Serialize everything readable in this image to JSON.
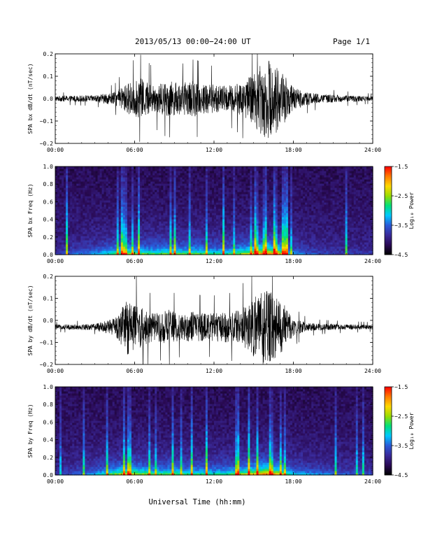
{
  "header": {
    "title": "2013/05/13  00:00−24:00 UT",
    "page": "Page 1/1"
  },
  "xaxis": {
    "label": "Universal Time (hh:mm)",
    "range_hours": [
      0,
      24
    ],
    "ticks": [
      {
        "hour": 0,
        "label": "00:00"
      },
      {
        "hour": 6,
        "label": "06:00"
      },
      {
        "hour": 12,
        "label": "12:00"
      },
      {
        "hour": 18,
        "label": "18:00"
      },
      {
        "hour": 24,
        "label": "24:00"
      }
    ]
  },
  "colorscale": [
    "#000000",
    "#2a0a55",
    "#3a2a9a",
    "#2a5ad8",
    "#00c8ff",
    "#00e07a",
    "#9adc00",
    "#ffd800",
    "#ff7a00",
    "#ff0000"
  ],
  "chart_data": [
    {
      "type": "line",
      "ylabel": "SPA bx dB/dt (nT/sec)",
      "ylim": [
        -0.2,
        0.2
      ],
      "yticks": [
        {
          "value": 0.2,
          "label": "0.2"
        },
        {
          "value": 0.1,
          "label": "0.1"
        },
        {
          "value": 0.0,
          "label": "0.0"
        },
        {
          "value": -0.1,
          "label": "−0.1"
        },
        {
          "value": -0.2,
          "label": "−0.2"
        }
      ],
      "baseline": 0.0,
      "x_hours": [
        0,
        3,
        4.5,
        5.5,
        6.5,
        7.5,
        8.5,
        9.5,
        10.5,
        11.5,
        12.5,
        13.5,
        14.5,
        15.2,
        16,
        17,
        18,
        19,
        20,
        22,
        24
      ],
      "amplitude": [
        0.012,
        0.015,
        0.03,
        0.07,
        0.09,
        0.06,
        0.08,
        0.07,
        0.08,
        0.07,
        0.06,
        0.06,
        0.09,
        0.14,
        0.18,
        0.14,
        0.05,
        0.03,
        0.02,
        0.015,
        0.01
      ]
    },
    {
      "type": "heatmap",
      "ylabel": "SPA bx Freq (Hz)",
      "ylim": [
        0,
        1.0
      ],
      "yticks": [
        {
          "value": 1.0,
          "label": "1.0"
        },
        {
          "value": 0.8,
          "label": "0.8"
        },
        {
          "value": 0.6,
          "label": "0.6"
        },
        {
          "value": 0.4,
          "label": "0.4"
        },
        {
          "value": 0.2,
          "label": "0.2"
        },
        {
          "value": 0.0,
          "label": "0.0"
        }
      ],
      "zlabel": "Log₁₀ Power",
      "zlim": [
        -4.5,
        -1.5
      ],
      "zticks": [
        {
          "value": -1.5,
          "label": "−1.5"
        },
        {
          "value": -2.5,
          "label": "−2.5"
        },
        {
          "value": -3.5,
          "label": "−3.5"
        },
        {
          "value": -4.5,
          "label": "−4.5"
        }
      ],
      "activity_x_hours": [
        0,
        3,
        4.5,
        5.5,
        6.5,
        7.5,
        8.5,
        9.5,
        10.5,
        11.5,
        12.5,
        13.5,
        14.5,
        15.2,
        16,
        17,
        18,
        19,
        20,
        22,
        24
      ],
      "activity": [
        0.1,
        0.3,
        0.5,
        0.6,
        0.55,
        0.5,
        0.55,
        0.5,
        0.55,
        0.5,
        0.45,
        0.5,
        0.65,
        0.8,
        0.9,
        0.75,
        0.3,
        0.2,
        0.15,
        0.1,
        0.1
      ]
    },
    {
      "type": "line",
      "ylabel": "SPA by dB/dt (nT/sec)",
      "ylim": [
        -0.2,
        0.2
      ],
      "yticks": [
        {
          "value": 0.2,
          "label": "0.2"
        },
        {
          "value": 0.1,
          "label": "0.1"
        },
        {
          "value": 0.0,
          "label": "0.0"
        },
        {
          "value": -0.1,
          "label": "−0.1"
        },
        {
          "value": -0.2,
          "label": "−0.2"
        }
      ],
      "baseline": -0.03,
      "x_hours": [
        0,
        3,
        4.5,
        5.5,
        6.5,
        7.5,
        8.5,
        9.5,
        10.5,
        11.5,
        12.5,
        13.5,
        14.5,
        15.2,
        16,
        17,
        18,
        19,
        20,
        22,
        24
      ],
      "amplitude": [
        0.01,
        0.015,
        0.04,
        0.13,
        0.09,
        0.06,
        0.08,
        0.06,
        0.07,
        0.06,
        0.07,
        0.07,
        0.1,
        0.15,
        0.17,
        0.13,
        0.04,
        0.02,
        0.015,
        0.012,
        0.01
      ]
    },
    {
      "type": "heatmap",
      "ylabel": "SPA by Freq (Hz)",
      "ylim": [
        0,
        1.0
      ],
      "yticks": [
        {
          "value": 1.0,
          "label": "1.0"
        },
        {
          "value": 0.8,
          "label": "0.8"
        },
        {
          "value": 0.6,
          "label": "0.6"
        },
        {
          "value": 0.4,
          "label": "0.4"
        },
        {
          "value": 0.2,
          "label": "0.2"
        },
        {
          "value": 0.0,
          "label": "0.0"
        }
      ],
      "zlabel": "Log₁₀ Power",
      "zlim": [
        -4.5,
        -1.5
      ],
      "zticks": [
        {
          "value": -1.5,
          "label": "−1.5"
        },
        {
          "value": -2.5,
          "label": "−2.5"
        },
        {
          "value": -3.5,
          "label": "−3.5"
        },
        {
          "value": -4.5,
          "label": "−4.5"
        }
      ],
      "activity_x_hours": [
        0,
        3,
        4.5,
        5.5,
        6.5,
        7.5,
        8.5,
        9.5,
        10.5,
        11.5,
        12.5,
        13.5,
        14.5,
        15.2,
        16,
        17,
        18,
        19,
        20,
        22,
        24
      ],
      "activity": [
        0.1,
        0.3,
        0.55,
        0.7,
        0.6,
        0.5,
        0.55,
        0.5,
        0.5,
        0.45,
        0.45,
        0.5,
        0.65,
        0.8,
        0.9,
        0.7,
        0.35,
        0.3,
        0.25,
        0.2,
        0.15
      ]
    }
  ]
}
